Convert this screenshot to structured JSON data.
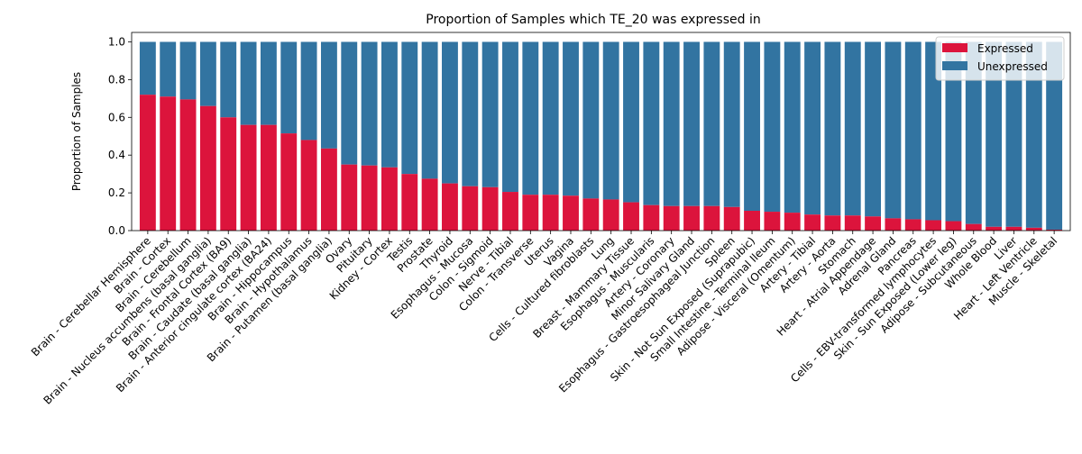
{
  "chart_data": {
    "type": "bar",
    "stacked": true,
    "title": "Proportion of Samples which TE_20 was expressed in",
    "xlabel": "",
    "ylabel": "Proportion of Samples",
    "ylim": [
      0,
      1.05
    ],
    "yticks": [
      "0.0",
      "0.2",
      "0.4",
      "0.6",
      "0.8",
      "1.0"
    ],
    "grid": false,
    "legend_position": "top-right",
    "categories": [
      "Brain - Cerebellar Hemisphere",
      "Brain - Cortex",
      "Brain - Cerebellum",
      "Brain - Nucleus accumbens (basal ganglia)",
      "Brain - Frontal Cortex (BA9)",
      "Brain - Caudate (basal ganglia)",
      "Brain - Anterior cingulate cortex (BA24)",
      "Brain - Hippocampus",
      "Brain - Hypothalamus",
      "Brain - Putamen (basal ganglia)",
      "Ovary",
      "Pituitary",
      "Kidney - Cortex",
      "Testis",
      "Prostate",
      "Thyroid",
      "Esophagus - Mucosa",
      "Colon - Sigmoid",
      "Nerve - Tibial",
      "Colon - Transverse",
      "Uterus",
      "Vagina",
      "Cells - Cultured fibroblasts",
      "Lung",
      "Breast - Mammary Tissue",
      "Esophagus - Muscularis",
      "Artery - Coronary",
      "Minor Salivary Gland",
      "Esophagus - Gastroesophageal Junction",
      "Spleen",
      "Skin - Not Sun Exposed (Suprapubic)",
      "Small Intestine - Terminal Ileum",
      "Adipose - Visceral (Omentum)",
      "Artery - Tibial",
      "Artery - Aorta",
      "Stomach",
      "Heart - Atrial Appendage",
      "Adrenal Gland",
      "Pancreas",
      "Cells - EBV-transformed lymphocytes",
      "Skin - Sun Exposed (Lower leg)",
      "Adipose - Subcutaneous",
      "Whole Blood",
      "Liver",
      "Heart - Left Ventricle",
      "Muscle - Skeletal"
    ],
    "series": [
      {
        "name": "Expressed",
        "color": "#dc143c",
        "values": [
          0.72,
          0.71,
          0.695,
          0.66,
          0.6,
          0.56,
          0.56,
          0.515,
          0.48,
          0.435,
          0.35,
          0.345,
          0.335,
          0.3,
          0.275,
          0.25,
          0.235,
          0.23,
          0.205,
          0.19,
          0.19,
          0.185,
          0.17,
          0.165,
          0.15,
          0.135,
          0.13,
          0.13,
          0.13,
          0.125,
          0.105,
          0.1,
          0.095,
          0.085,
          0.08,
          0.08,
          0.075,
          0.065,
          0.06,
          0.055,
          0.05,
          0.035,
          0.02,
          0.02,
          0.015,
          0.005
        ]
      },
      {
        "name": "Unexpressed",
        "color": "#3274a1",
        "values": [
          0.28,
          0.29,
          0.305,
          0.34,
          0.4,
          0.44,
          0.44,
          0.485,
          0.52,
          0.565,
          0.65,
          0.655,
          0.665,
          0.7,
          0.725,
          0.75,
          0.765,
          0.77,
          0.795,
          0.81,
          0.81,
          0.815,
          0.83,
          0.835,
          0.85,
          0.865,
          0.87,
          0.87,
          0.87,
          0.875,
          0.895,
          0.9,
          0.905,
          0.915,
          0.92,
          0.92,
          0.925,
          0.935,
          0.94,
          0.945,
          0.95,
          0.965,
          0.98,
          0.98,
          0.985,
          0.995
        ]
      }
    ]
  }
}
